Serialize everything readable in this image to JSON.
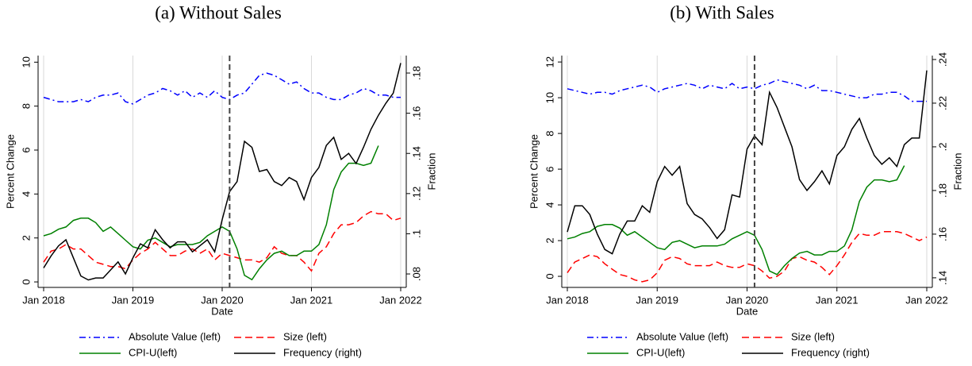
{
  "chart_data": [
    {
      "type": "line",
      "title": "(a) Without Sales",
      "xlabel": "Date",
      "ylabel": "Percent Change",
      "y2label": "Fraction",
      "x": [
        "2018-01",
        "2018-02",
        "2018-03",
        "2018-04",
        "2018-05",
        "2018-06",
        "2018-07",
        "2018-08",
        "2018-09",
        "2018-10",
        "2018-11",
        "2018-12",
        "2019-01",
        "2019-02",
        "2019-03",
        "2019-04",
        "2019-05",
        "2019-06",
        "2019-07",
        "2019-08",
        "2019-09",
        "2019-10",
        "2019-11",
        "2019-12",
        "2020-01",
        "2020-02",
        "2020-03",
        "2020-04",
        "2020-05",
        "2020-06",
        "2020-07",
        "2020-08",
        "2020-09",
        "2020-10",
        "2020-11",
        "2020-12",
        "2021-01",
        "2021-02",
        "2021-03",
        "2021-04",
        "2021-05",
        "2021-06",
        "2021-07",
        "2021-08",
        "2021-09",
        "2021-10",
        "2021-11",
        "2021-12",
        "2022-01"
      ],
      "xticks": [
        {
          "value": "2018-01",
          "label": "Jan 2018"
        },
        {
          "value": "2019-01",
          "label": "Jan 2019"
        },
        {
          "value": "2020-01",
          "label": "Jan 2020"
        },
        {
          "value": "2021-01",
          "label": "Jan 2021"
        },
        {
          "value": "2022-01",
          "label": "Jan 2022"
        }
      ],
      "vline": "2020-02",
      "ylim": [
        -0.25,
        10.3
      ],
      "yticks": [
        0,
        2,
        4,
        6,
        8,
        10
      ],
      "y2lim": [
        0.0733,
        0.1887
      ],
      "y2ticks": [
        {
          "value": 0.08,
          "label": ".08"
        },
        {
          "value": 0.1,
          "label": ".1"
        },
        {
          "value": 0.12,
          "label": ".12"
        },
        {
          "value": 0.14,
          "label": ".14"
        },
        {
          "value": 0.16,
          "label": ".16"
        },
        {
          "value": 0.18,
          "label": ".18"
        }
      ],
      "grid": true,
      "series": [
        {
          "name": "Absolute Value (left)",
          "color": "#0000ff",
          "style": "dashdot",
          "values": [
            8.4,
            8.3,
            8.2,
            8.2,
            8.2,
            8.3,
            8.2,
            8.4,
            8.5,
            8.5,
            8.6,
            8.2,
            8.1,
            8.3,
            8.5,
            8.6,
            8.8,
            8.7,
            8.5,
            8.7,
            8.4,
            8.6,
            8.4,
            8.7,
            8.4,
            8.3,
            8.5,
            8.6,
            9.0,
            9.4,
            9.5,
            9.4,
            9.2,
            9.0,
            9.1,
            8.8,
            8.6,
            8.6,
            8.4,
            8.3,
            8.3,
            8.5,
            8.6,
            8.8,
            8.7,
            8.5,
            8.5,
            8.4,
            8.4
          ]
        },
        {
          "name": "Size (left)",
          "color": "#ff0000",
          "style": "dashed",
          "values": [
            0.9,
            1.4,
            1.5,
            1.7,
            1.5,
            1.5,
            1.2,
            0.9,
            0.8,
            0.7,
            0.7,
            0.6,
            1.0,
            1.3,
            1.5,
            1.8,
            1.5,
            1.2,
            1.2,
            1.4,
            1.5,
            1.3,
            1.5,
            1.0,
            1.3,
            1.2,
            1.1,
            1.0,
            1.0,
            0.9,
            1.1,
            1.6,
            1.3,
            1.2,
            1.2,
            0.9,
            0.5,
            1.3,
            1.6,
            2.2,
            2.6,
            2.6,
            2.7,
            3.0,
            3.2,
            3.1,
            3.1,
            2.8,
            2.9
          ]
        },
        {
          "name": "CPI-U(left)",
          "color": "#008000",
          "style": "solid",
          "values": [
            2.1,
            2.2,
            2.4,
            2.5,
            2.8,
            2.9,
            2.9,
            2.7,
            2.3,
            2.5,
            2.2,
            1.9,
            1.6,
            1.5,
            1.9,
            2.0,
            1.8,
            1.6,
            1.7,
            1.7,
            1.7,
            1.8,
            2.1,
            2.3,
            2.5,
            2.3,
            1.5,
            0.3,
            0.1,
            0.6,
            1.0,
            1.3,
            1.4,
            1.2,
            1.2,
            1.4,
            1.4,
            1.7,
            2.6,
            4.2,
            5.0,
            5.4,
            5.4,
            5.3,
            5.4,
            6.2,
            null,
            null,
            null
          ]
        },
        {
          "name": "Frequency (right)",
          "color": "#000000",
          "style": "solid",
          "axis": "y2",
          "values": [
            0.083,
            0.089,
            0.094,
            0.097,
            0.088,
            0.079,
            0.077,
            0.078,
            0.078,
            0.082,
            0.086,
            0.08,
            0.088,
            0.095,
            0.093,
            0.102,
            0.097,
            0.093,
            0.096,
            0.096,
            0.091,
            0.094,
            0.097,
            0.091,
            0.107,
            0.121,
            0.126,
            0.146,
            0.143,
            0.131,
            0.132,
            0.126,
            0.124,
            0.128,
            0.126,
            0.117,
            0.128,
            0.133,
            0.144,
            0.148,
            0.137,
            0.14,
            0.135,
            0.143,
            0.152,
            0.159,
            0.165,
            0.17,
            0.185
          ]
        }
      ]
    },
    {
      "type": "line",
      "title": "(b) With Sales",
      "xlabel": "Date",
      "ylabel": "Percent Change",
      "y2label": "Fraction",
      "x": [
        "2018-01",
        "2018-02",
        "2018-03",
        "2018-04",
        "2018-05",
        "2018-06",
        "2018-07",
        "2018-08",
        "2018-09",
        "2018-10",
        "2018-11",
        "2018-12",
        "2019-01",
        "2019-02",
        "2019-03",
        "2019-04",
        "2019-05",
        "2019-06",
        "2019-07",
        "2019-08",
        "2019-09",
        "2019-10",
        "2019-11",
        "2019-12",
        "2020-01",
        "2020-02",
        "2020-03",
        "2020-04",
        "2020-05",
        "2020-06",
        "2020-07",
        "2020-08",
        "2020-09",
        "2020-10",
        "2020-11",
        "2020-12",
        "2021-01",
        "2021-02",
        "2021-03",
        "2021-04",
        "2021-05",
        "2021-06",
        "2021-07",
        "2021-08",
        "2021-09",
        "2021-10",
        "2021-11",
        "2021-12",
        "2022-01"
      ],
      "xticks": [
        {
          "value": "2018-01",
          "label": "Jan 2018"
        },
        {
          "value": "2019-01",
          "label": "Jan 2019"
        },
        {
          "value": "2020-01",
          "label": "Jan 2020"
        },
        {
          "value": "2021-01",
          "label": "Jan 2021"
        },
        {
          "value": "2022-01",
          "label": "Jan 2022"
        }
      ],
      "vline": "2020-02",
      "ylim": [
        -0.62,
        12.36
      ],
      "yticks": [
        0,
        2,
        4,
        6,
        8,
        10,
        12
      ],
      "y2lim": [
        0.1356,
        0.2418
      ],
      "y2ticks": [
        {
          "value": 0.14,
          "label": ".14"
        },
        {
          "value": 0.16,
          "label": ".16"
        },
        {
          "value": 0.18,
          "label": ".18"
        },
        {
          "value": 0.2,
          "label": ".2"
        },
        {
          "value": 0.22,
          "label": ".22"
        },
        {
          "value": 0.24,
          "label": ".24"
        }
      ],
      "grid": true,
      "series": [
        {
          "name": "Absolute Value (left)",
          "color": "#0000ff",
          "style": "dashdot",
          "values": [
            10.5,
            10.4,
            10.3,
            10.2,
            10.3,
            10.3,
            10.2,
            10.4,
            10.5,
            10.6,
            10.7,
            10.6,
            10.3,
            10.5,
            10.6,
            10.7,
            10.8,
            10.7,
            10.5,
            10.7,
            10.6,
            10.5,
            10.8,
            10.5,
            10.6,
            10.5,
            10.7,
            10.8,
            11.0,
            10.9,
            10.8,
            10.7,
            10.5,
            10.7,
            10.4,
            10.4,
            10.3,
            10.2,
            10.1,
            10.0,
            10.0,
            10.2,
            10.2,
            10.3,
            10.3,
            10.1,
            9.8,
            9.8,
            9.8
          ]
        },
        {
          "name": "Size (left)",
          "color": "#ff0000",
          "style": "dashed",
          "values": [
            0.2,
            0.8,
            1.0,
            1.2,
            1.1,
            0.7,
            0.4,
            0.1,
            0.0,
            -0.2,
            -0.3,
            -0.2,
            0.2,
            0.9,
            1.1,
            1.0,
            0.7,
            0.6,
            0.6,
            0.6,
            0.8,
            0.6,
            0.5,
            0.5,
            0.7,
            0.6,
            0.3,
            -0.1,
            0.0,
            0.3,
            1.0,
            1.1,
            0.9,
            0.8,
            0.5,
            0.1,
            0.6,
            1.2,
            1.9,
            2.4,
            2.3,
            2.3,
            2.5,
            2.5,
            2.5,
            2.4,
            2.2,
            2.0,
            2.2
          ]
        },
        {
          "name": "CPI-U(left)",
          "color": "#008000",
          "style": "solid",
          "values": [
            2.1,
            2.2,
            2.4,
            2.5,
            2.8,
            2.9,
            2.9,
            2.7,
            2.3,
            2.5,
            2.2,
            1.9,
            1.6,
            1.5,
            1.9,
            2.0,
            1.8,
            1.6,
            1.7,
            1.7,
            1.7,
            1.8,
            2.1,
            2.3,
            2.5,
            2.3,
            1.5,
            0.3,
            0.1,
            0.6,
            1.0,
            1.3,
            1.4,
            1.2,
            1.2,
            1.4,
            1.4,
            1.7,
            2.6,
            4.2,
            5.0,
            5.4,
            5.4,
            5.3,
            5.4,
            6.2,
            null,
            null,
            null
          ]
        },
        {
          "name": "Frequency (right)",
          "color": "#000000",
          "style": "solid",
          "axis": "y2",
          "values": [
            0.161,
            0.173,
            0.173,
            0.169,
            0.16,
            0.153,
            0.151,
            0.16,
            0.166,
            0.166,
            0.173,
            0.17,
            0.184,
            0.191,
            0.187,
            0.191,
            0.174,
            0.169,
            0.167,
            0.163,
            0.158,
            0.162,
            0.178,
            0.177,
            0.199,
            0.205,
            0.201,
            0.225,
            0.218,
            0.209,
            0.2,
            0.185,
            0.18,
            0.184,
            0.189,
            0.183,
            0.196,
            0.2,
            0.208,
            0.213,
            0.204,
            0.196,
            0.192,
            0.195,
            0.191,
            0.201,
            0.204,
            0.204,
            0.235
          ]
        }
      ]
    }
  ]
}
